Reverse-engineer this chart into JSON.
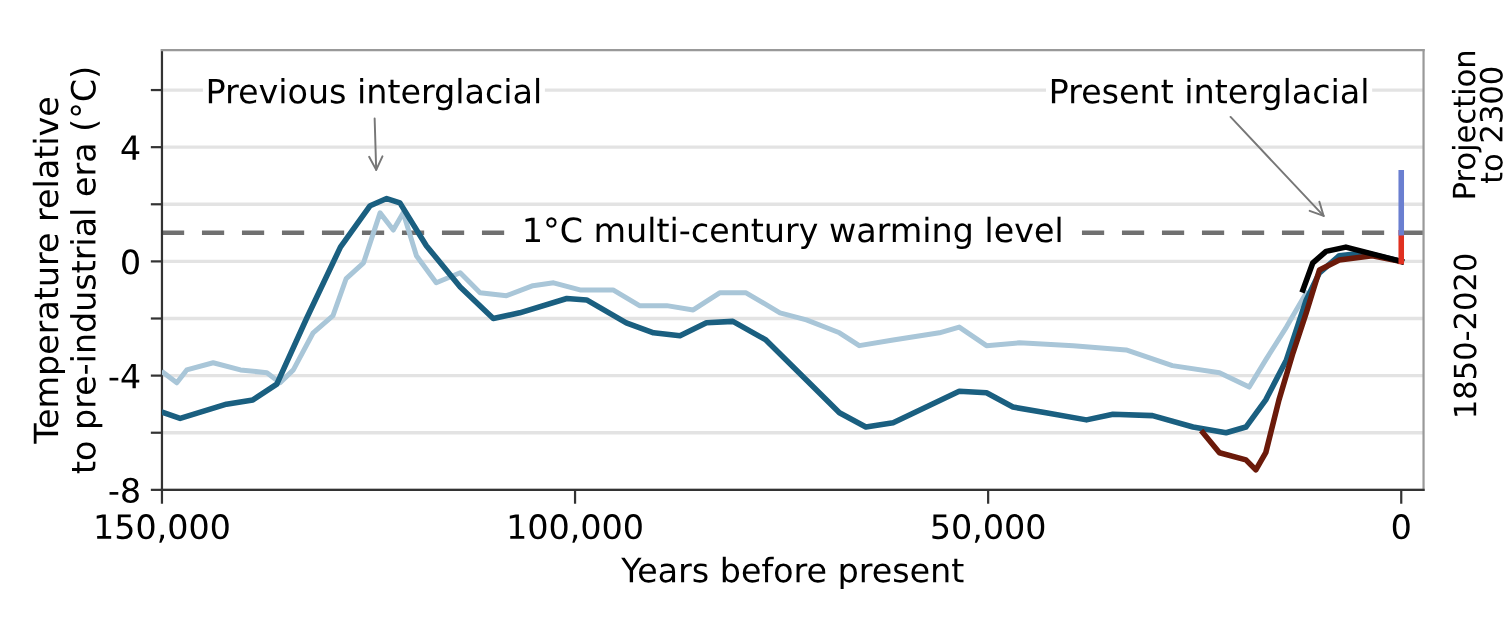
{
  "chart_data": {
    "type": "line",
    "xlabel": "Years before present",
    "ylabel": "Temperature relative\nto pre-industrial era (°C)",
    "xlim": [
      150000,
      -2700
    ],
    "ylim": [
      -8,
      7.4
    ],
    "xticks": [
      {
        "value": 150000,
        "label": "150,000"
      },
      {
        "value": 100000,
        "label": "100,000"
      },
      {
        "value": 50000,
        "label": "50,000"
      },
      0
    ],
    "yticks": [
      -8,
      {
        "value": -6,
        "label": null
      },
      -4,
      {
        "value": -2,
        "label": null
      },
      0,
      {
        "value": 2,
        "label": null
      },
      4,
      {
        "value": 6,
        "label": null
      }
    ],
    "grid": "y",
    "line_style": "solid",
    "series": [
      {
        "color": "#a9c6d8",
        "x": [
          149800,
          148200,
          147000,
          143800,
          140500,
          137300,
          135700,
          134100,
          131700,
          129300,
          127700,
          125600,
          123600,
          122000,
          120800,
          119200,
          116800,
          113900,
          111500,
          108300,
          105100,
          102600,
          99400,
          95400,
          92200,
          88900,
          85700,
          82500,
          79300,
          75200,
          72000,
          68000,
          65600,
          61500,
          55900,
          53500,
          50200,
          46200,
          39700,
          33300,
          27700,
          22000,
          18400,
          16400,
          13900,
          11500
        ],
        "values": [
          -3.9,
          -4.25,
          -3.8,
          -3.55,
          -3.8,
          -3.9,
          -4.25,
          -3.8,
          -2.5,
          -1.9,
          -0.6,
          -0.05,
          1.7,
          1.1,
          1.7,
          0.2,
          -0.75,
          -0.4,
          -1.1,
          -1.2,
          -0.85,
          -0.75,
          -1.0,
          -1.0,
          -1.55,
          -1.55,
          -1.7,
          -1.1,
          -1.1,
          -1.8,
          -2.05,
          -2.5,
          -2.95,
          -2.75,
          -2.5,
          -2.3,
          -2.95,
          -2.85,
          -2.95,
          -3.1,
          -3.65,
          -3.9,
          -4.4,
          -3.45,
          -2.3,
          -1.1
        ]
      },
      {
        "color": "#1a5f80",
        "x": [
          149800,
          147800,
          142200,
          139000,
          136100,
          132500,
          128400,
          124800,
          122800,
          121200,
          118000,
          113900,
          109900,
          106700,
          101000,
          98600,
          93800,
          90500,
          87300,
          84100,
          80900,
          76900,
          72000,
          68000,
          64800,
          61500,
          57500,
          53500,
          50200,
          47000,
          43000,
          38100,
          34900,
          30100,
          25200,
          21200,
          18800,
          16400,
          13900,
          11500,
          9900,
          7500,
          4300,
          0
        ],
        "values": [
          -5.3,
          -5.5,
          -5.0,
          -4.85,
          -4.3,
          -2.0,
          0.5,
          1.95,
          2.2,
          2.05,
          0.55,
          -0.9,
          -2.0,
          -1.8,
          -1.3,
          -1.35,
          -2.15,
          -2.5,
          -2.6,
          -2.15,
          -2.1,
          -2.75,
          -4.15,
          -5.3,
          -5.8,
          -5.65,
          -5.1,
          -4.55,
          -4.6,
          -5.1,
          -5.3,
          -5.55,
          -5.35,
          -5.4,
          -5.8,
          -6.0,
          -5.8,
          -4.85,
          -3.45,
          -1.35,
          -0.4,
          0.2,
          0.3,
          0.0
        ]
      },
      {
        "color": "#6b1a0a",
        "x": [
          24000,
          22000,
          18800,
          17600,
          16400,
          14800,
          13100,
          11500,
          9900,
          7500,
          3500,
          0
        ],
        "values": [
          -6.0,
          -6.7,
          -6.95,
          -7.3,
          -6.7,
          -4.85,
          -3.2,
          -1.8,
          -0.3,
          0.05,
          0.2,
          0.0
        ]
      },
      {
        "color": "#000000",
        "x": [
          11900,
          10700,
          9100,
          6700,
          2700,
          0
        ],
        "values": [
          -1.0,
          -0.05,
          0.35,
          0.5,
          0.2,
          0.0
        ]
      },
      {
        "color": "#e03020",
        "x": [
          0,
          0
        ],
        "values": [
          0.0,
          1.0
        ]
      },
      {
        "color": "#6a7fd0",
        "x": [
          0,
          0
        ],
        "values": [
          1.0,
          3.1
        ]
      }
    ],
    "ref_lines": [
      {
        "axis": "y",
        "value": 1,
        "label": "1°C multi-century warming level",
        "color": "#707070",
        "line_style": "dashed"
      }
    ],
    "annotations": [
      "Previous interglacial",
      "Present interglacial",
      "1850-2020",
      "Projection to 2300"
    ]
  }
}
